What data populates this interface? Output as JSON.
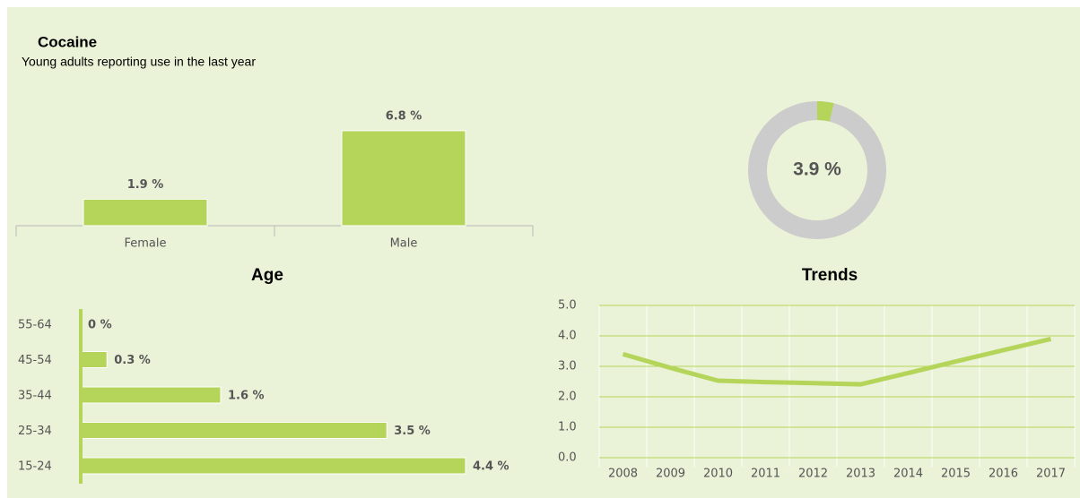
{
  "header": {
    "title": "Cocaine",
    "subtitle": "Young adults reporting use in the last year"
  },
  "chart_data": [
    {
      "type": "bar",
      "categories": [
        "Female",
        "Male"
      ],
      "values": [
        1.9,
        6.8
      ],
      "value_labels": [
        "1.9 %",
        "6.8 %"
      ],
      "color": "#b5d55a"
    },
    {
      "type": "donut",
      "values": [
        3.9
      ],
      "value_labels": [
        "3.9 %"
      ],
      "color": "#b5d55a",
      "rest_color": "#cccccc"
    },
    {
      "type": "hbar",
      "title": "Age",
      "categories": [
        "55-64",
        "45-54",
        "35-44",
        "25-34",
        "15-24"
      ],
      "values": [
        0,
        0.3,
        1.6,
        3.5,
        4.4
      ],
      "value_labels": [
        "0 %",
        "0.3 %",
        "1.6 %",
        "3.5 %",
        "4.4 %"
      ],
      "color": "#b5d55a"
    },
    {
      "type": "line",
      "title": "Trends",
      "x": [
        2008,
        2009,
        2010,
        2011,
        2012,
        2013,
        2014,
        2015,
        2016,
        2017
      ],
      "values": [
        3.4,
        2.95,
        2.53,
        2.48,
        2.45,
        2.41,
        2.78,
        3.16,
        3.53,
        3.9
      ],
      "color": "#b5d55a",
      "ylim": [
        0,
        5
      ],
      "yticks": [
        {
          "value": 0,
          "label": "0.0"
        },
        {
          "value": 1,
          "label": "1.0"
        },
        {
          "value": 2,
          "label": "2.0"
        },
        {
          "value": 3,
          "label": "3.0"
        },
        {
          "value": 4,
          "label": "4.0"
        },
        {
          "value": 5,
          "label": "5.0"
        }
      ],
      "grid": true
    }
  ]
}
